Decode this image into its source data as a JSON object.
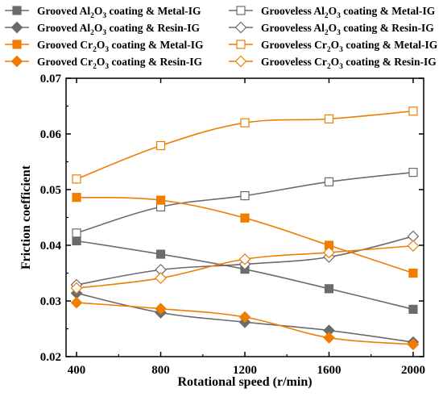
{
  "chart_data": {
    "type": "line",
    "xlabel": "Rotational speed (r/min)",
    "ylabel": "Friction coefficient",
    "x": [
      400,
      800,
      1200,
      1600,
      2000
    ],
    "x_ticks": [
      "400",
      "800",
      "1200",
      "1600",
      "2000"
    ],
    "y_ticks": [
      "0.02",
      "0.03",
      "0.04",
      "0.05",
      "0.06",
      "0.07"
    ],
    "xlim": [
      350,
      2050
    ],
    "ylim": [
      0.02,
      0.07
    ],
    "grid": false,
    "legend_position": "top",
    "series": [
      {
        "name": "Grooved Al2O3 coating & Metal-IG",
        "legend": {
          "pre": "Grooved Al",
          "s1": "2",
          "mid": "O",
          "s2": "3",
          "post": " coating & Metal-IG"
        },
        "color": "#6b6b6b",
        "marker": "square",
        "filled": true,
        "values": [
          0.0408,
          0.0384,
          0.0357,
          0.0322,
          0.0285
        ]
      },
      {
        "name": "Grooveless Al2O3 coating & Metal-IG",
        "legend": {
          "pre": "Grooveless Al",
          "s1": "2",
          "mid": "O",
          "s2": "3",
          "post": " coating & Metal-IG"
        },
        "color": "#6b6b6b",
        "marker": "square",
        "filled": false,
        "values": [
          0.0422,
          0.0469,
          0.0489,
          0.0514,
          0.0531
        ]
      },
      {
        "name": "Grooved Al2O3 coating & Resin-IG",
        "legend": {
          "pre": "Grooved Al",
          "s1": "2",
          "mid": "O",
          "s2": "3",
          "post": " coating & Resin-IG"
        },
        "color": "#6b6b6b",
        "marker": "diamond",
        "filled": true,
        "values": [
          0.0314,
          0.0279,
          0.0262,
          0.0247,
          0.0226
        ]
      },
      {
        "name": "Grooveless Al2O3 coating & Resin-IG",
        "legend": {
          "pre": "Grooveless Al",
          "s1": "2",
          "mid": "O",
          "s2": "3",
          "post": " coating & Resin-IG"
        },
        "color": "#6b6b6b",
        "marker": "diamond",
        "filled": false,
        "values": [
          0.0329,
          0.0356,
          0.0366,
          0.0379,
          0.0416
        ]
      },
      {
        "name": "Grooved Cr2O3 coating & Metal-IG",
        "legend": {
          "pre": "Grooved Cr",
          "s1": "2",
          "mid": "O",
          "s2": "3",
          "post": " coating & Metal-IG"
        },
        "color": "#f07d00",
        "marker": "square",
        "filled": true,
        "values": [
          0.0486,
          0.0481,
          0.0449,
          0.04,
          0.035
        ]
      },
      {
        "name": "Grooveless Cr2O3 coating & Metal-IG",
        "legend": {
          "pre": "Grooveless Cr",
          "s1": "2",
          "mid": "O",
          "s2": "3",
          "post": " coating & Metal-IG"
        },
        "color": "#f07d00",
        "marker": "square",
        "filled": false,
        "values": [
          0.0519,
          0.0579,
          0.062,
          0.0627,
          0.0641
        ]
      },
      {
        "name": "Grooved Cr2O3 coating & Resin-IG",
        "legend": {
          "pre": "Grooved Cr",
          "s1": "2",
          "mid": "O",
          "s2": "3",
          "post": " coating & Resin-IG"
        },
        "color": "#f07d00",
        "marker": "diamond",
        "filled": true,
        "values": [
          0.0297,
          0.0286,
          0.0271,
          0.0234,
          0.0222
        ]
      },
      {
        "name": "Grooveless Cr2O3 coating & Resin-IG",
        "legend": {
          "pre": "Grooveless Cr",
          "s1": "2",
          "mid": "O",
          "s2": "3",
          "post": " coating & Resin-IG"
        },
        "color": "#f07d00",
        "marker": "diamond",
        "filled": false,
        "values": [
          0.0323,
          0.0341,
          0.0375,
          0.0387,
          0.0399
        ]
      }
    ]
  }
}
